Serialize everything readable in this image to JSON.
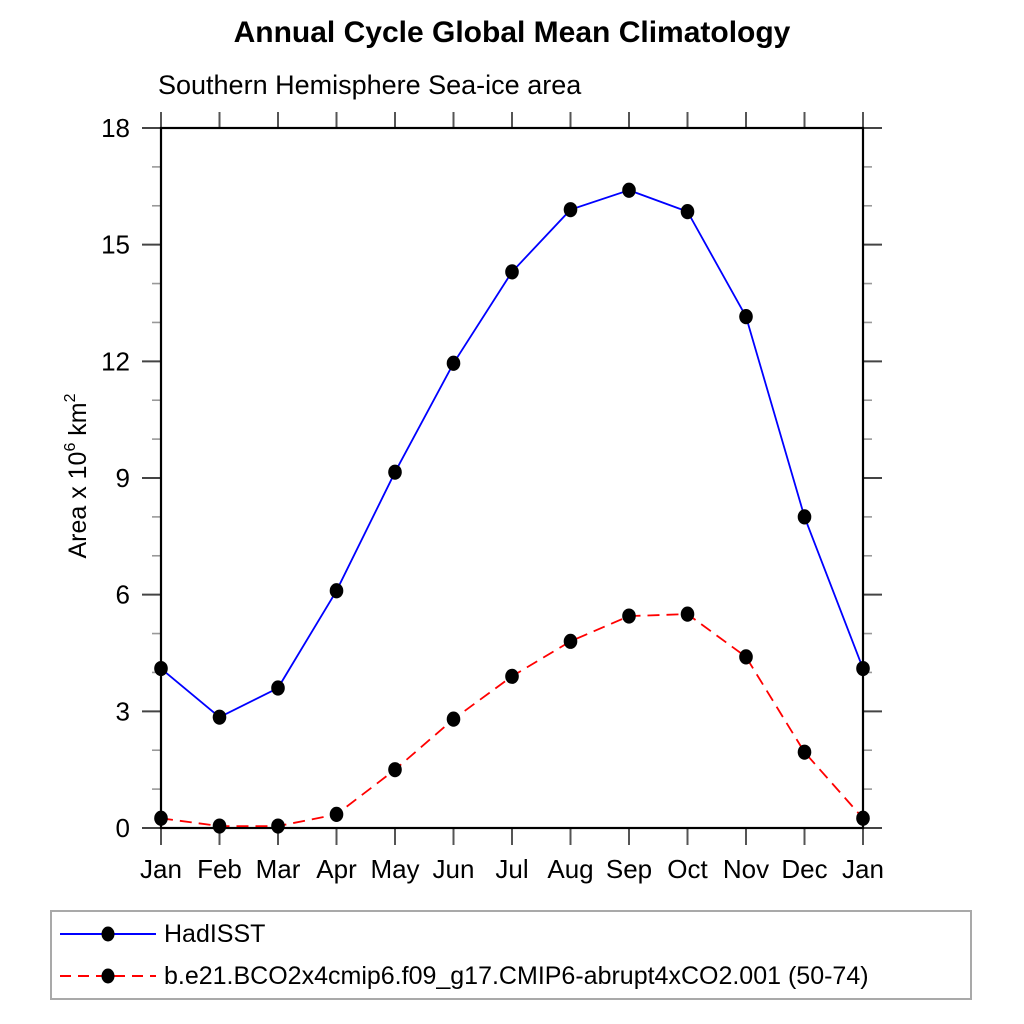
{
  "chart_data": {
    "type": "line",
    "title": "Annual Cycle Global Mean Climatology",
    "subtitle": "Southern Hemisphere Sea-ice area",
    "ylabel": {
      "base": "Area x 10",
      "sup1": "6",
      "base2": " km",
      "sup2": "2"
    },
    "categories": [
      "Jan",
      "Feb",
      "Mar",
      "Apr",
      "May",
      "Jun",
      "Jul",
      "Aug",
      "Sep",
      "Oct",
      "Nov",
      "Dec",
      "Jan"
    ],
    "ylim": [
      0,
      18
    ],
    "ytick_major": [
      0,
      3,
      6,
      9,
      12,
      15,
      18
    ],
    "ytick_minor_step": 1,
    "grid": false,
    "legend_position": "bottom-left",
    "series": [
      {
        "name": "HadISST",
        "line_color": "#0000ff",
        "line_style": "solid",
        "marker": "filled-circle",
        "marker_color": "#000000",
        "values": [
          4.1,
          2.85,
          3.6,
          6.1,
          9.15,
          11.95,
          14.3,
          15.9,
          16.4,
          15.85,
          13.15,
          8.0,
          4.1
        ]
      },
      {
        "name": "b.e21.BCO2x4cmip6.f09_g17.CMIP6-abrupt4xCO2.001 (50-74)",
        "line_color": "#ff0000",
        "line_style": "dashed",
        "marker": "filled-circle",
        "marker_color": "#000000",
        "values": [
          0.25,
          0.05,
          0.05,
          0.35,
          1.5,
          2.8,
          3.9,
          4.8,
          5.45,
          5.5,
          4.4,
          1.95,
          0.25
        ]
      }
    ]
  }
}
